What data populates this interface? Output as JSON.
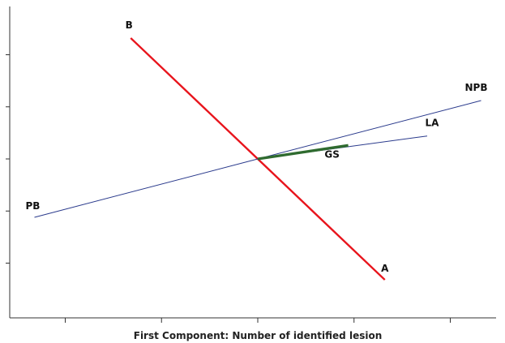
{
  "chart_data": {
    "type": "biplot",
    "title": "",
    "xlabel": "First Component: Number of identified lesion",
    "ylabel": "",
    "xlim": [
      -0.66,
      0.66
    ],
    "ylim": [
      -0.67,
      0.67
    ],
    "grid": false,
    "origin": [
      0,
      0
    ],
    "vectors": [
      {
        "name": "B",
        "x": -0.33,
        "y": 0.58,
        "color": "#e8141c"
      },
      {
        "name": "A",
        "x": 0.33,
        "y": -0.58,
        "color": "#e8141c"
      },
      {
        "name": "NPB",
        "x": 0.58,
        "y": 0.28,
        "color": "#2a3a8c"
      },
      {
        "name": "PB",
        "x": -0.58,
        "y": -0.28,
        "color": "#2a3a8c"
      },
      {
        "name": "LA",
        "x": 0.44,
        "y": 0.11,
        "color": "#2a3a8c"
      },
      {
        "name": "GS",
        "x": 0.235,
        "y": 0.065,
        "color": "#2f6b2f"
      }
    ]
  }
}
